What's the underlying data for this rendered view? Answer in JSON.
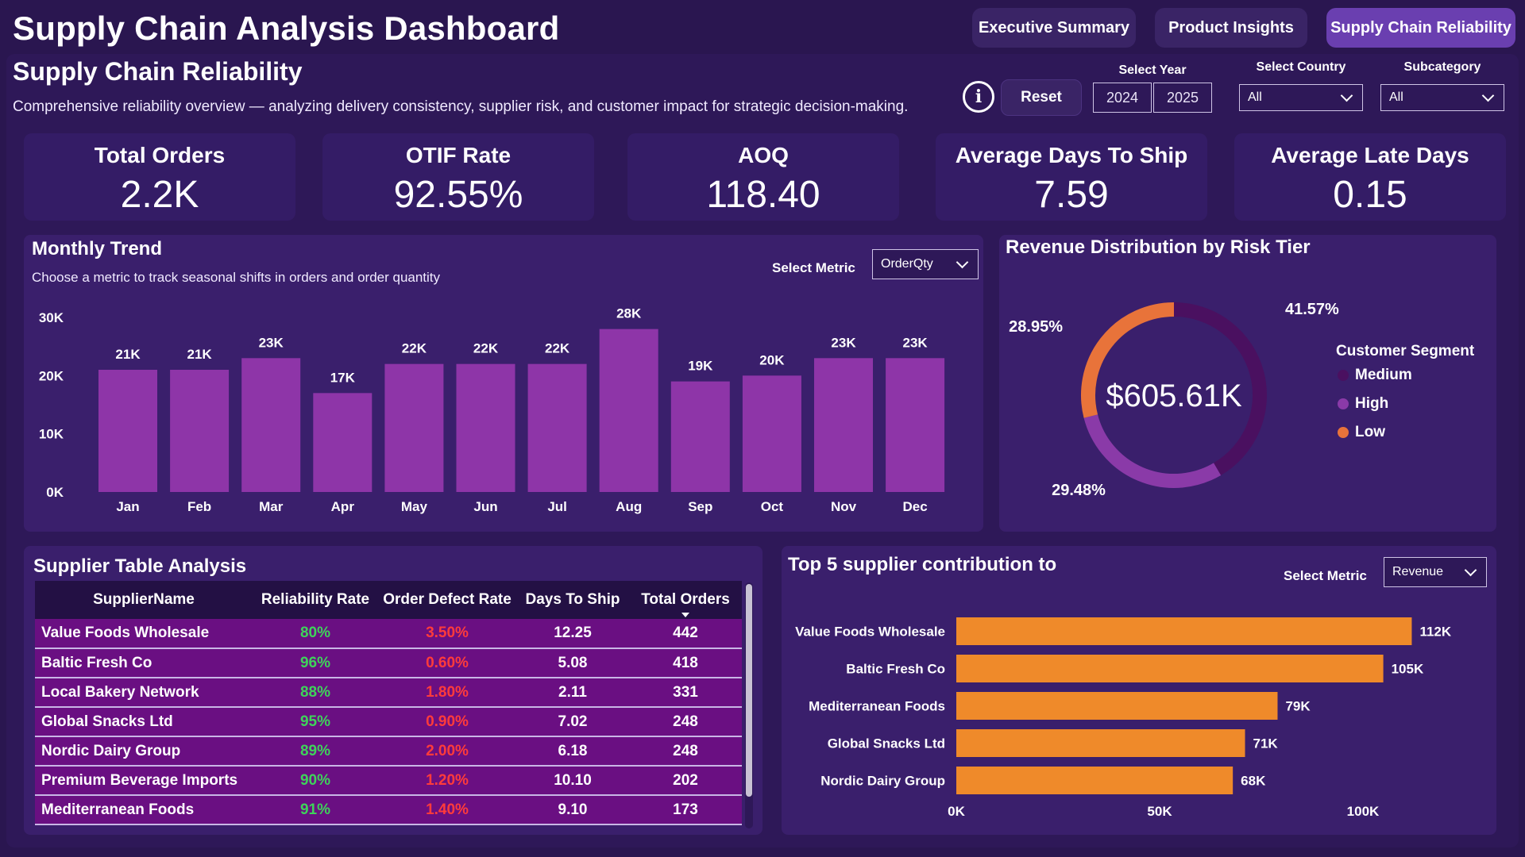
{
  "header": {
    "title": "Supply Chain Analysis Dashboard",
    "nav": [
      {
        "label": "Executive Summary",
        "active": false
      },
      {
        "label": "Product Insights",
        "active": false
      },
      {
        "label": "Supply Chain Reliability",
        "active": true
      }
    ]
  },
  "page": {
    "title": "Supply Chain Reliability",
    "description": "Comprehensive reliability overview — analyzing delivery consistency, supplier risk, and customer impact for strategic decision-making.",
    "info_icon": "info-icon",
    "info_glyph": "i",
    "reset_label": "Reset"
  },
  "filters": {
    "year_label": "Select Year",
    "years": [
      "2024",
      "2025"
    ],
    "country_label": "Select Country",
    "country_value": "All",
    "subcategory_label": "Subcategory",
    "subcategory_value": "All"
  },
  "kpis": [
    {
      "label": "Total Orders",
      "value": "2.2K"
    },
    {
      "label": "OTIF Rate",
      "value": "92.55%"
    },
    {
      "label": "AOQ",
      "value": "118.40"
    },
    {
      "label": "Average Days To Ship",
      "value": "7.59"
    },
    {
      "label": "Average Late Days",
      "value": "0.15"
    }
  ],
  "monthly_trend": {
    "title": "Monthly Trend",
    "subtitle": "Choose a metric to track seasonal shifts in orders and order quantity",
    "metric_label": "Select Metric",
    "metric_value": "OrderQty"
  },
  "risk_tier": {
    "title": "Revenue Distribution by Risk Tier",
    "center_value": "$605.61K",
    "legend_title": "Customer Segment"
  },
  "supplier_table": {
    "title": "Supplier Table Analysis",
    "columns": [
      "SupplierName",
      "Reliability Rate",
      "Order Defect Rate",
      "Days To Ship",
      "Total Orders"
    ],
    "rows": [
      [
        "Value Foods Wholesale",
        "80%",
        "3.50%",
        "12.25",
        "442"
      ],
      [
        "Baltic Fresh Co",
        "96%",
        "0.60%",
        "5.08",
        "418"
      ],
      [
        "Local Bakery Network",
        "88%",
        "1.80%",
        "2.11",
        "331"
      ],
      [
        "Global Snacks Ltd",
        "95%",
        "0.90%",
        "7.02",
        "248"
      ],
      [
        "Nordic Dairy Group",
        "89%",
        "2.00%",
        "6.18",
        "248"
      ],
      [
        "Premium Beverage Imports",
        "90%",
        "1.20%",
        "10.10",
        "202"
      ],
      [
        "Mediterranean Foods",
        "91%",
        "1.40%",
        "9.10",
        "173"
      ]
    ]
  },
  "top_suppliers": {
    "title": "Top 5 supplier contribution to",
    "metric_label": "Select Metric",
    "metric_value": "Revenue"
  },
  "colors": {
    "background": "#2a1650",
    "bar_purple": "#8e35a8",
    "bar_orange": "#ef8a2a",
    "medium": "#4a1060",
    "high": "#8a3aa8",
    "low": "#e8733a",
    "green": "#3ed35a",
    "red": "#ff3b3b"
  },
  "chart_data": [
    {
      "type": "bar",
      "title": "Monthly Trend",
      "categories": [
        "Jan",
        "Feb",
        "Mar",
        "Apr",
        "May",
        "Jun",
        "Jul",
        "Aug",
        "Sep",
        "Oct",
        "Nov",
        "Dec"
      ],
      "values": [
        21000,
        21000,
        23000,
        17000,
        22000,
        22000,
        22000,
        28000,
        19000,
        20000,
        23000,
        23000
      ],
      "data_labels": [
        "21K",
        "21K",
        "23K",
        "17K",
        "22K",
        "22K",
        "22K",
        "28K",
        "19K",
        "20K",
        "23K",
        "23K"
      ],
      "ylim": [
        0,
        30000
      ],
      "yticks": [
        0,
        10000,
        20000,
        30000
      ],
      "ytick_labels": [
        "0K",
        "10K",
        "20K",
        "30K"
      ],
      "grid": false
    },
    {
      "type": "pie",
      "title": "Revenue Distribution by Risk Tier",
      "series": [
        {
          "name": "Medium",
          "value": 41.57,
          "label": "41.57%"
        },
        {
          "name": "High",
          "value": 29.48,
          "label": "29.48%"
        },
        {
          "name": "Low",
          "value": 28.95,
          "label": "28.95%"
        }
      ],
      "legend_placement": "right"
    },
    {
      "type": "bar",
      "orientation": "horizontal",
      "title": "Top 5 supplier contribution to",
      "categories": [
        "Value Foods Wholesale",
        "Baltic Fresh Co",
        "Mediterranean Foods",
        "Global Snacks Ltd",
        "Nordic Dairy Group"
      ],
      "values": [
        112000,
        105000,
        79000,
        71000,
        68000
      ],
      "data_labels": [
        "112K",
        "105K",
        "79K",
        "71K",
        "68K"
      ],
      "xlim": [
        0,
        120000
      ],
      "xticks": [
        0,
        50000,
        100000
      ],
      "xtick_labels": [
        "0K",
        "50K",
        "100K"
      ],
      "grid": false
    }
  ]
}
